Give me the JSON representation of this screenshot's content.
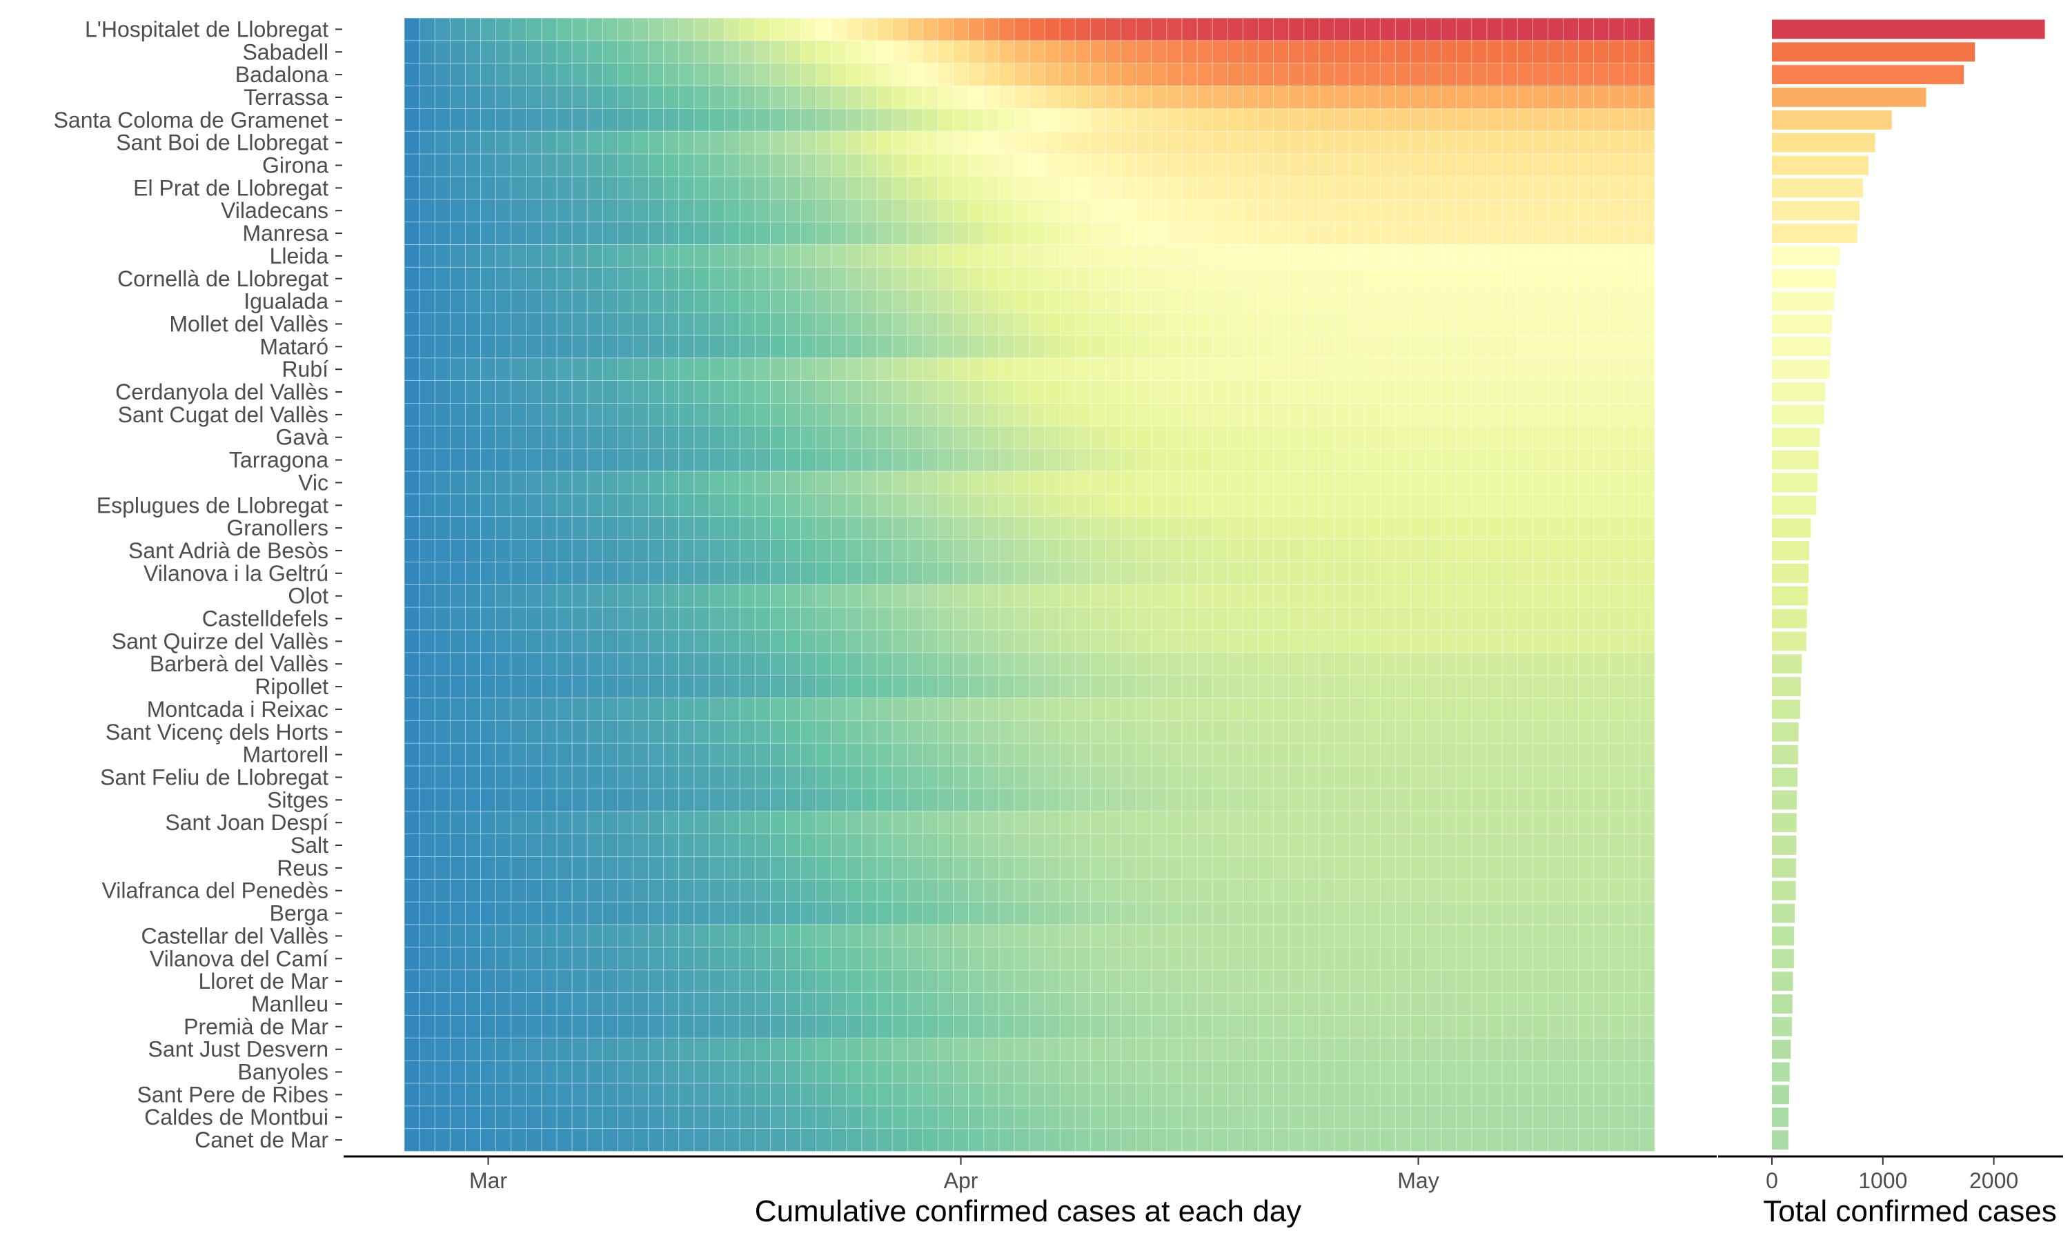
{
  "chart_data": [
    {
      "type": "heatmap",
      "title": "",
      "xlabel": "Cumulative confirmed cases at each day",
      "ylabel": "",
      "x_range": [
        "2020-02-25",
        "2020-05-17"
      ],
      "x_ticks": [
        "Mar",
        "Apr",
        "May"
      ],
      "value_encoding": "color: blue (low) to green to yellow to red (high), shared with bar chart",
      "grid": false,
      "legend": "none",
      "rows": [
        {
          "name": "L'Hospitalet de Llobregat",
          "total": 2460
        },
        {
          "name": "Sabadell",
          "total": 1830
        },
        {
          "name": "Badalona",
          "total": 1730
        },
        {
          "name": "Terrassa",
          "total": 1390
        },
        {
          "name": "Santa Coloma de Gramenet",
          "total": 1080
        },
        {
          "name": "Sant Boi de Llobregat",
          "total": 930
        },
        {
          "name": "Girona",
          "total": 870
        },
        {
          "name": "El Prat de Llobregat",
          "total": 820
        },
        {
          "name": "Viladecans",
          "total": 790
        },
        {
          "name": "Manresa",
          "total": 770
        },
        {
          "name": "Lleida",
          "total": 610
        },
        {
          "name": "Cornellà de Llobregat",
          "total": 580
        },
        {
          "name": "Igualada",
          "total": 560
        },
        {
          "name": "Mollet del Vallès",
          "total": 540
        },
        {
          "name": "Mataró",
          "total": 530
        },
        {
          "name": "Rubí",
          "total": 520
        },
        {
          "name": "Cerdanyola del Vallès",
          "total": 480
        },
        {
          "name": "Sant Cugat del Vallès",
          "total": 470
        },
        {
          "name": "Gavà",
          "total": 430
        },
        {
          "name": "Tarragona",
          "total": 420
        },
        {
          "name": "Vic",
          "total": 410
        },
        {
          "name": "Esplugues de Llobregat",
          "total": 400
        },
        {
          "name": "Granollers",
          "total": 350
        },
        {
          "name": "Sant Adrià de Besòs",
          "total": 335
        },
        {
          "name": "Vilanova i la Geltrú",
          "total": 330
        },
        {
          "name": "Olot",
          "total": 325
        },
        {
          "name": "Castelldefels",
          "total": 315
        },
        {
          "name": "Sant Quirze del Vallès",
          "total": 310
        },
        {
          "name": "Barberà del Vallès",
          "total": 270
        },
        {
          "name": "Ripollet",
          "total": 260
        },
        {
          "name": "Montcada i Reixac",
          "total": 255
        },
        {
          "name": "Sant Vicenç dels Horts",
          "total": 240
        },
        {
          "name": "Martorell",
          "total": 235
        },
        {
          "name": "Sant Feliu de Llobregat",
          "total": 230
        },
        {
          "name": "Sitges",
          "total": 225
        },
        {
          "name": "Sant Joan Despí",
          "total": 222
        },
        {
          "name": "Salt",
          "total": 220
        },
        {
          "name": "Reus",
          "total": 218
        },
        {
          "name": "Vilafranca del Penedès",
          "total": 215
        },
        {
          "name": "Berga",
          "total": 205
        },
        {
          "name": "Castellar del Vallès",
          "total": 200
        },
        {
          "name": "Vilanova del Camí",
          "total": 198
        },
        {
          "name": "Lloret de Mar",
          "total": 190
        },
        {
          "name": "Manlleu",
          "total": 185
        },
        {
          "name": "Premià de Mar",
          "total": 180
        },
        {
          "name": "Sant Just Desvern",
          "total": 170
        },
        {
          "name": "Banyoles",
          "total": 160
        },
        {
          "name": "Sant Pere de Ribes",
          "total": 155
        },
        {
          "name": "Caldes de Montbui",
          "total": 150
        },
        {
          "name": "Canet de Mar",
          "total": 148
        }
      ]
    },
    {
      "type": "bar",
      "orientation": "horizontal",
      "title": "",
      "xlabel": "Total confirmed cases",
      "ylabel": "",
      "xlim": [
        0,
        2500
      ],
      "x_ticks": [
        0,
        1000,
        2000
      ],
      "values_from": "rows[].total of the heatmap (same category order)",
      "grid": false,
      "legend": "none"
    }
  ],
  "colors": {
    "palette": [
      "#3288bd",
      "#66c2a5",
      "#abdda4",
      "#e6f598",
      "#ffffbf",
      "#fee08b",
      "#fdae61",
      "#f46d43",
      "#d53e4f"
    ],
    "axis": "#000000",
    "tick_label": "#4d4d4d",
    "cell_grid": "#ffffff"
  }
}
